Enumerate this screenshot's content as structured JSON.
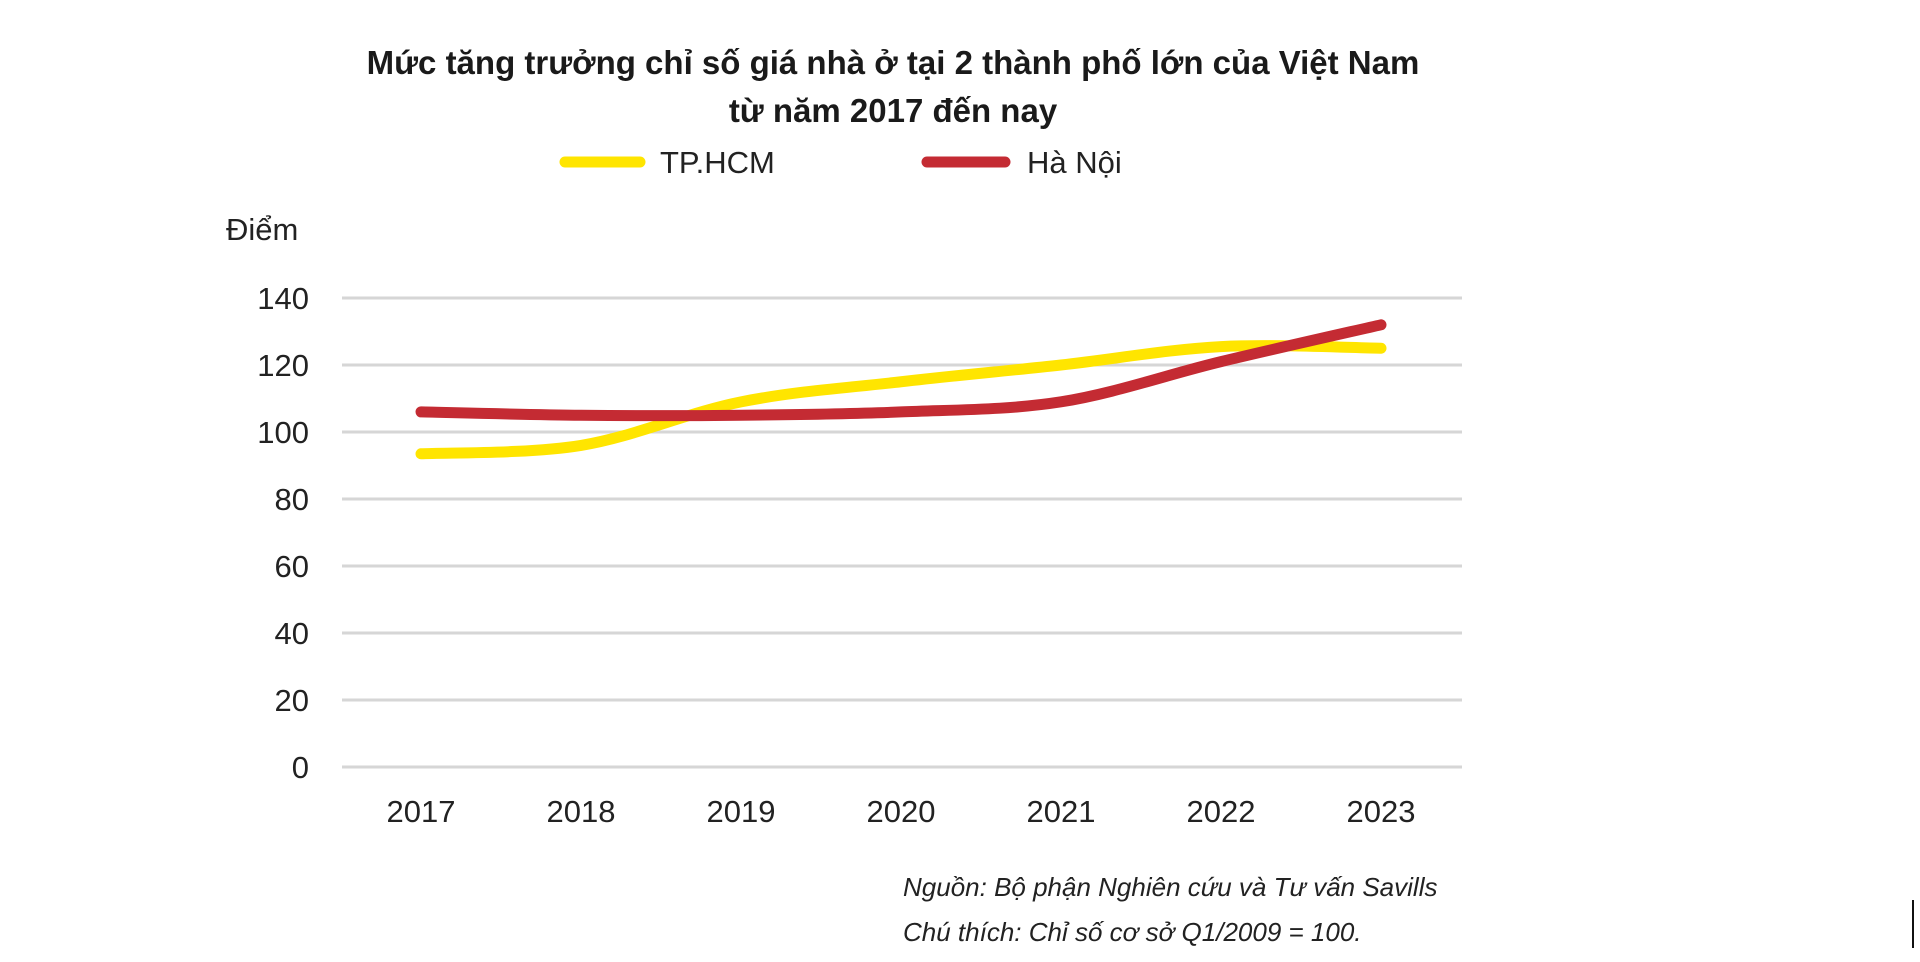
{
  "chart_data": {
    "type": "line",
    "title": [
      "Mức tăng trưởng chỉ số giá nhà ở tại 2 thành phố lớn của Việt Nam",
      "từ năm 2017 đến nay"
    ],
    "ylabel": "Điểm",
    "xlabel": "",
    "categories": [
      "2017",
      "2018",
      "2019",
      "2020",
      "2021",
      "2022",
      "2023"
    ],
    "yticks": [
      "0",
      "20",
      "40",
      "60",
      "80",
      "100",
      "120",
      "140"
    ],
    "ylim": [
      0,
      140
    ],
    "grid": true,
    "legend_position": "top",
    "series": [
      {
        "name": "TP.HCM",
        "color": "#FFE500",
        "values": [
          93.5,
          96,
          109,
          115,
          120,
          125.5,
          125
        ]
      },
      {
        "name": "Hà Nội",
        "color": "#C42B33",
        "values": [
          106,
          105,
          105,
          106,
          109,
          121,
          132
        ]
      }
    ],
    "notes": [
      "Nguồn: Bộ phận Nghiên cứu và Tư vấn Savills",
      "Chú thích: Chỉ số cơ sở Q1/2009 = 100."
    ]
  }
}
